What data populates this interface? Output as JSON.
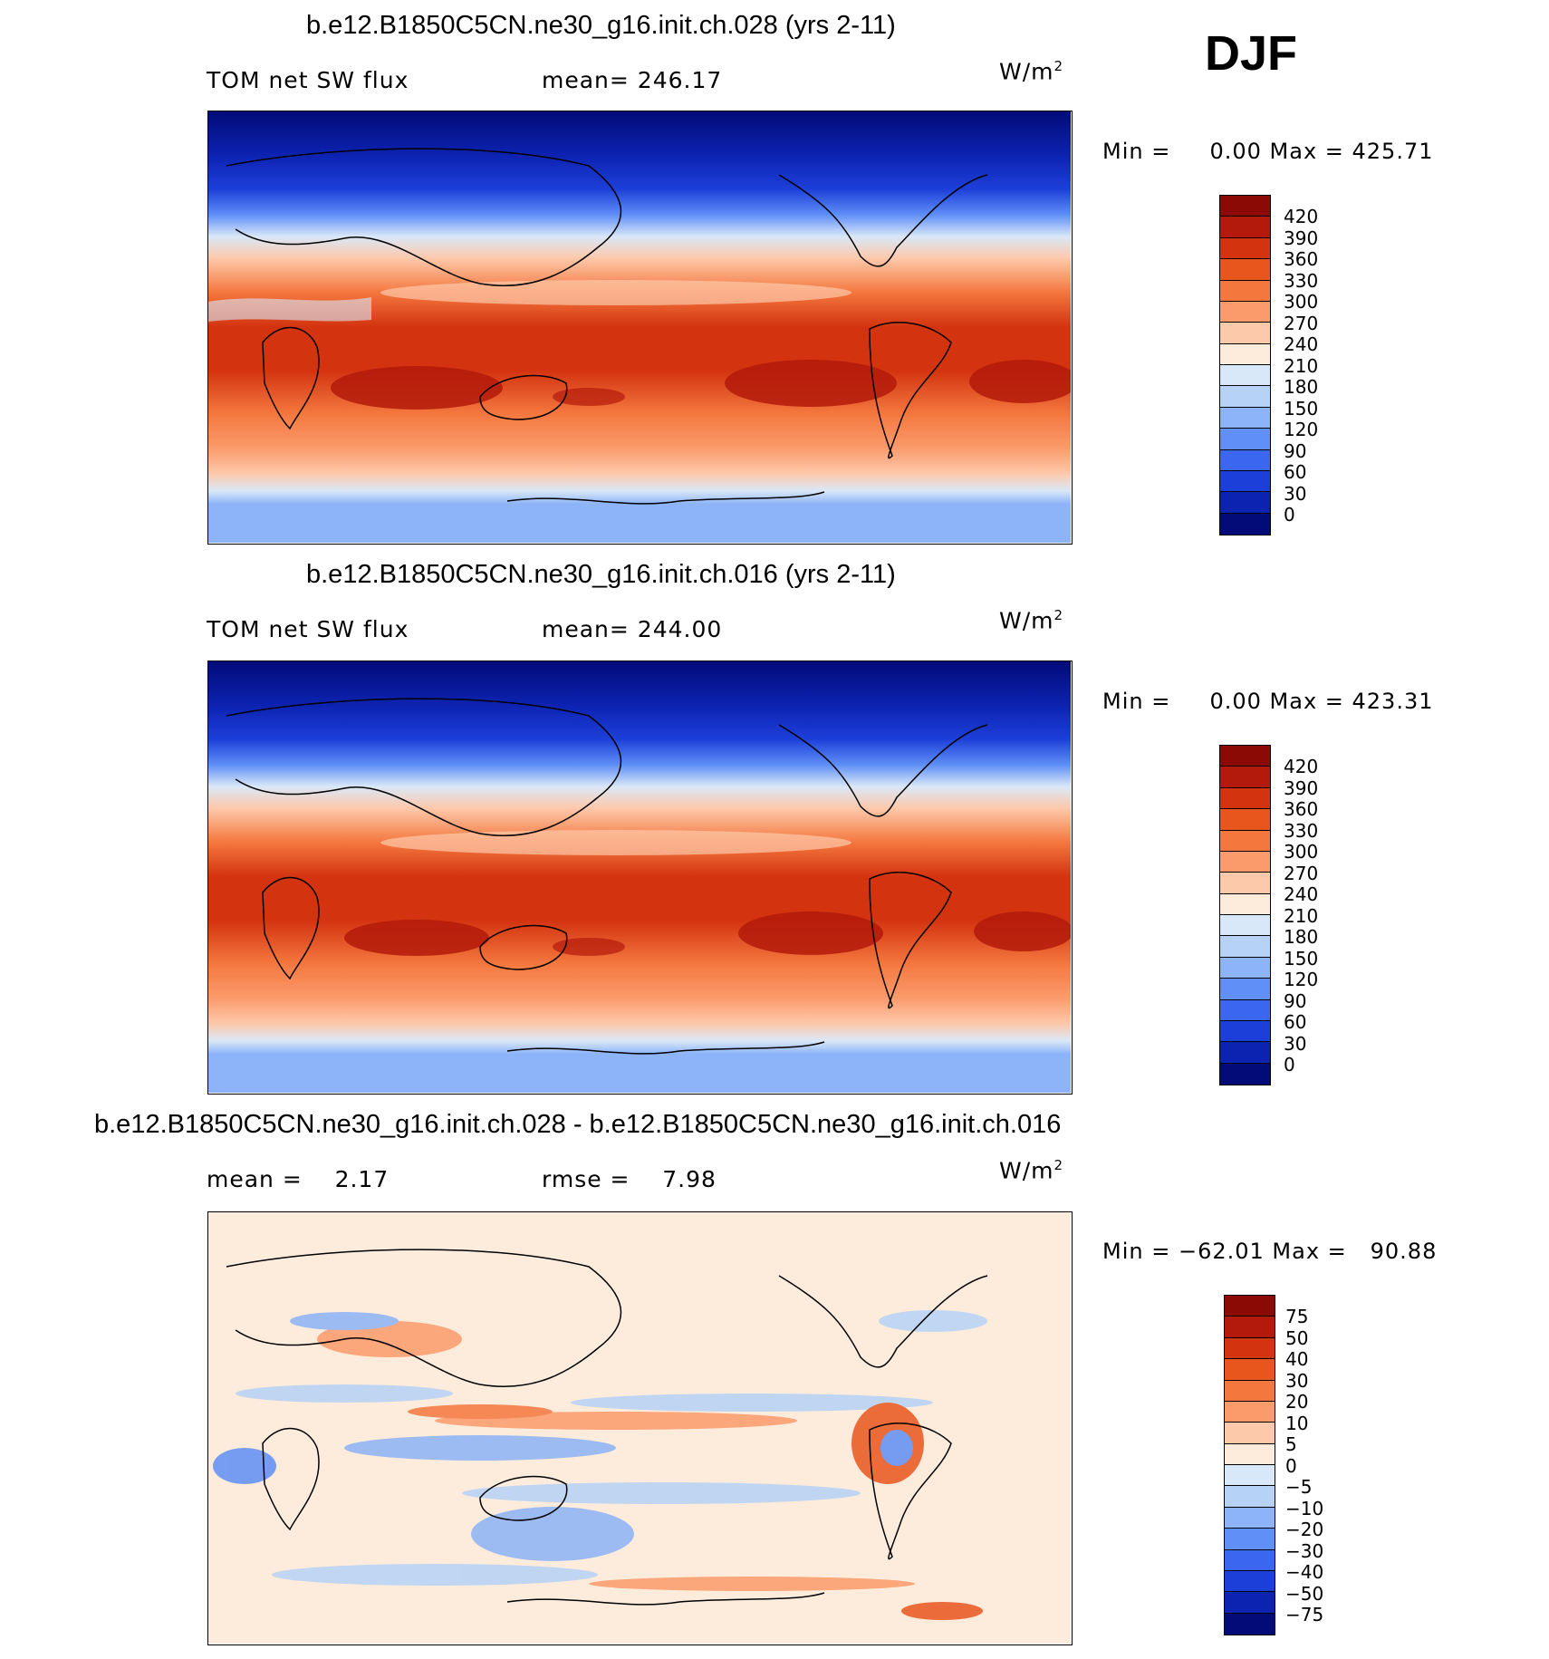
{
  "season": "DJF",
  "colors": {
    "abs_scale": [
      "#8b0a05",
      "#b31a0b",
      "#d3330f",
      "#e8551d",
      "#f4773e",
      "#fb9a6b",
      "#fdc9ab",
      "#fdecdc",
      "#d9e8f8",
      "#b6d2f6",
      "#8db3f8",
      "#5f8ff7",
      "#3b66f0",
      "#1d3fd9",
      "#0c22b0",
      "#020b78"
    ],
    "diff_scale": [
      "#8b0a05",
      "#b31a0b",
      "#d3330f",
      "#e8551d",
      "#f4773e",
      "#fb9a6b",
      "#fdc9ab",
      "#fdecdc",
      "#d9e8f8",
      "#b6d2f6",
      "#8db3f8",
      "#5f8ff7",
      "#3b66f0",
      "#1d3fd9",
      "#0c22b0",
      "#020b78"
    ]
  },
  "panels": [
    {
      "title": "b.e12.B1850C5CN.ne30_g16.init.ch.028 (yrs 2-11)",
      "field": "TOM net SW flux",
      "stat1": "mean= 246.17",
      "stat2": "",
      "units": "W/m",
      "units_sup": "2",
      "minmax": "Min =     0.00 Max = 425.71",
      "colorbar_labels": [
        "420",
        "390",
        "360",
        "330",
        "300",
        "270",
        "240",
        "210",
        "180",
        "150",
        "120",
        "90",
        "60",
        "30",
        "0"
      ]
    },
    {
      "title": "b.e12.B1850C5CN.ne30_g16.init.ch.016 (yrs 2-11)",
      "field": "TOM net SW flux",
      "stat1": "mean= 244.00",
      "stat2": "",
      "units": "W/m",
      "units_sup": "2",
      "minmax": "Min =     0.00 Max = 423.31",
      "colorbar_labels": [
        "420",
        "390",
        "360",
        "330",
        "300",
        "270",
        "240",
        "210",
        "180",
        "150",
        "120",
        "90",
        "60",
        "30",
        "0"
      ]
    },
    {
      "title": "b.e12.B1850C5CN.ne30_g16.init.ch.028 - b.e12.B1850C5CN.ne30_g16.init.ch.016",
      "field": "mean =    2.17",
      "stat1": "rmse =    7.98",
      "stat2": "",
      "units": "W/m",
      "units_sup": "2",
      "minmax": "Min = −62.01 Max =   90.88",
      "colorbar_labels": [
        "75",
        "50",
        "40",
        "30",
        "20",
        "10",
        "5",
        "0",
        "−5",
        "−10",
        "−20",
        "−30",
        "−40",
        "−50",
        "−75"
      ]
    }
  ]
}
